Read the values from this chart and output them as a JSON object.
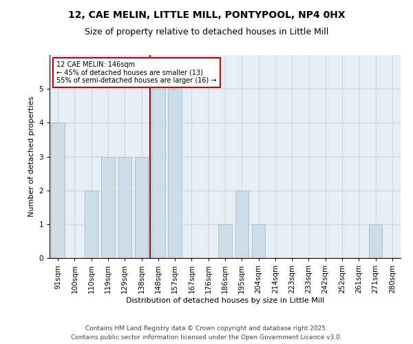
{
  "title_line1": "12, CAE MELIN, LITTLE MILL, PONTYPOOL, NP4 0HX",
  "title_line2": "Size of property relative to detached houses in Little Mill",
  "xlabel": "Distribution of detached houses by size in Little Mill",
  "ylabel": "Number of detached properties",
  "categories": [
    "91sqm",
    "100sqm",
    "110sqm",
    "119sqm",
    "129sqm",
    "138sqm",
    "148sqm",
    "157sqm",
    "167sqm",
    "176sqm",
    "186sqm",
    "195sqm",
    "204sqm",
    "214sqm",
    "223sqm",
    "233sqm",
    "242sqm",
    "252sqm",
    "261sqm",
    "271sqm",
    "280sqm"
  ],
  "values": [
    4,
    0,
    2,
    3,
    3,
    3,
    5,
    5,
    0,
    0,
    1,
    2,
    1,
    0,
    0,
    0,
    0,
    0,
    0,
    1,
    0
  ],
  "bar_color": "#ccdce8",
  "bar_edge_color": "#a0bcd0",
  "highlight_index": 6,
  "highlight_line_color": "#aa0000",
  "annotation_text": "12 CAE MELIN: 146sqm\n← 45% of detached houses are smaller (13)\n55% of semi-detached houses are larger (16) →",
  "annotation_box_color": "#ffffff",
  "annotation_box_edge_color": "#cc0000",
  "ylim": [
    0,
    6
  ],
  "yticks": [
    0,
    1,
    2,
    3,
    4,
    5,
    6
  ],
  "grid_color": "#d0d8e0",
  "background_color": "#e8eef5",
  "footer_line1": "Contains HM Land Registry data © Crown copyright and database right 2025.",
  "footer_line2": "Contains public sector information licensed under the Open Government Licence v3.0.",
  "title_fontsize": 10,
  "subtitle_fontsize": 9,
  "axis_label_fontsize": 8,
  "tick_fontsize": 7.5,
  "annotation_fontsize": 7,
  "footer_fontsize": 6.5,
  "bar_width": 0.8
}
